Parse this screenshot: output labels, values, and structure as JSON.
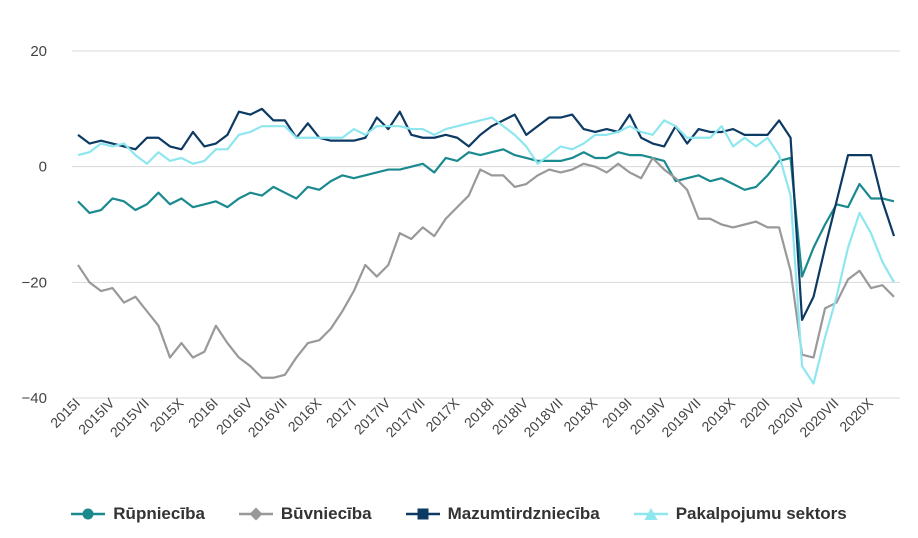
{
  "chart_data": {
    "type": "line",
    "title": "",
    "xlabel": "",
    "ylabel": "",
    "ylim": [
      -40,
      20
    ],
    "yticks": [
      20,
      0,
      -20,
      -40
    ],
    "ytick_labels": [
      "20",
      "0",
      "−20",
      "−40"
    ],
    "grid": "horizontal",
    "legend_position": "bottom",
    "x": [
      "2015I",
      "2015II",
      "2015III",
      "2015IV",
      "2015V",
      "2015VI",
      "2015VII",
      "2015VIII",
      "2015IX",
      "2015X",
      "2015XI",
      "2015XII",
      "2016I",
      "2016II",
      "2016III",
      "2016IV",
      "2016V",
      "2016VI",
      "2016VII",
      "2016VIII",
      "2016IX",
      "2016X",
      "2016XI",
      "2016XII",
      "2017I",
      "2017II",
      "2017III",
      "2017IV",
      "2017V",
      "2017VI",
      "2017VII",
      "2017VIII",
      "2017IX",
      "2017X",
      "2017XI",
      "2017XII",
      "2018I",
      "2018II",
      "2018III",
      "2018IV",
      "2018V",
      "2018VI",
      "2018VII",
      "2018VIII",
      "2018IX",
      "2018X",
      "2018XI",
      "2018XII",
      "2019I",
      "2019II",
      "2019III",
      "2019IV",
      "2019V",
      "2019VI",
      "2019VII",
      "2019VIII",
      "2019IX",
      "2019X",
      "2019XI",
      "2019XII",
      "2020I",
      "2020II",
      "2020III",
      "2020IV",
      "2020V",
      "2020VI",
      "2020VII",
      "2020VIII",
      "2020IX",
      "2020X",
      "2020XI",
      "2020XII"
    ],
    "x_tick_labels": [
      "2015I",
      "2015IV",
      "2015VII",
      "2015X",
      "2016I",
      "2016IV",
      "2016VII",
      "2016X",
      "2017I",
      "2017IV",
      "2017VII",
      "2017X",
      "2018I",
      "2018IV",
      "2018VII",
      "2018X",
      "2019I",
      "2019IV",
      "2019VII",
      "2019X",
      "2020I",
      "2020IV",
      "2020VII",
      "2020X"
    ],
    "series": [
      {
        "name": "Rūpniecība",
        "color": "#1a8a8f",
        "marker": "circle",
        "values": [
          -6,
          -8,
          -7.5,
          -5.5,
          -6,
          -7.5,
          -6.5,
          -4.5,
          -6.5,
          -5.5,
          -7,
          -6.5,
          -6,
          -7,
          -5.5,
          -4.5,
          -5,
          -3.5,
          -4.5,
          -5.5,
          -3.5,
          -4,
          -2.5,
          -1.5,
          -2,
          -1.5,
          -1,
          -0.5,
          -0.5,
          0,
          0.5,
          -1,
          1.5,
          1,
          2.5,
          2,
          2.5,
          3,
          2,
          1.5,
          1,
          1,
          1,
          1.5,
          2.5,
          1.5,
          1.5,
          2.5,
          2,
          2,
          1.5,
          1,
          -2.5,
          -2,
          -1.5,
          -2.5,
          -2,
          -3,
          -4,
          -3.5,
          -1.5,
          1,
          1.5,
          -19,
          -14,
          -10,
          -6.5,
          -7,
          -3,
          -5.5,
          -5.5,
          -6
        ]
      },
      {
        "name": "Būvniecība",
        "color": "#999999",
        "marker": "diamond",
        "values": [
          -17,
          -20,
          -21.5,
          -21,
          -23.5,
          -22.5,
          -25,
          -27.5,
          -33,
          -30.5,
          -33,
          -32,
          -27.5,
          -30.5,
          -33,
          -34.5,
          -36.5,
          -36.5,
          -36,
          -33,
          -30.5,
          -30,
          -28,
          -25,
          -21.5,
          -17,
          -19,
          -17,
          -11.5,
          -12.5,
          -10.5,
          -12,
          -9,
          -7,
          -5,
          -0.5,
          -1.5,
          -1.5,
          -3.5,
          -3,
          -1.5,
          -0.5,
          -1,
          -0.5,
          0.5,
          0,
          -1,
          0.5,
          -1,
          -2,
          1.5,
          -0.5,
          -2,
          -4,
          -9,
          -9,
          -10,
          -10.5,
          -10,
          -9.5,
          -10.5,
          -10.5,
          -18,
          -32.5,
          -33,
          -24.5,
          -23.5,
          -19.5,
          -18,
          -21,
          -20.5,
          -22.5
        ]
      },
      {
        "name": "Mazumtirdzniecība",
        "color": "#0d3a63",
        "marker": "square",
        "values": [
          5.5,
          4,
          4.5,
          4,
          3.5,
          3,
          5,
          5,
          3.5,
          3,
          6,
          3.5,
          4,
          5.5,
          9.5,
          9,
          10,
          8,
          8,
          5,
          7.5,
          5,
          4.5,
          4.5,
          4.5,
          5,
          8.5,
          6.5,
          9.5,
          5.5,
          5,
          5,
          5.5,
          5,
          3.5,
          5.5,
          7,
          8,
          9,
          5.5,
          7,
          8.5,
          8.5,
          9,
          6.5,
          6,
          6.5,
          6,
          9,
          5,
          4,
          3.5,
          7,
          4,
          6.5,
          6,
          6,
          6.5,
          5.5,
          5.5,
          5.5,
          8,
          5,
          -26.5,
          -22.5,
          -14,
          -6,
          2,
          2,
          2,
          -6,
          -12
        ]
      },
      {
        "name": "Pakalpojumu sektors",
        "color": "#8ee6ef",
        "marker": "triangle",
        "values": [
          2,
          2.5,
          4,
          3.5,
          4,
          2,
          0.5,
          2.5,
          1,
          1.5,
          0.5,
          1,
          3,
          3,
          5.5,
          6,
          7,
          7,
          7,
          5,
          5,
          5,
          5,
          5,
          6.5,
          5.5,
          7,
          7,
          7,
          6.5,
          6.5,
          5.5,
          6.5,
          7,
          7.5,
          8,
          8.5,
          7,
          5.5,
          3.5,
          0.5,
          2,
          3.5,
          3,
          4,
          5.5,
          5.5,
          6,
          7,
          6,
          5.5,
          8,
          7,
          5,
          5,
          5,
          7,
          3.5,
          5,
          3.5,
          5,
          2,
          -5,
          -34.5,
          -37.5,
          -29.5,
          -22.5,
          -14,
          -8,
          -11.5,
          -16.5,
          -20
        ]
      }
    ]
  }
}
